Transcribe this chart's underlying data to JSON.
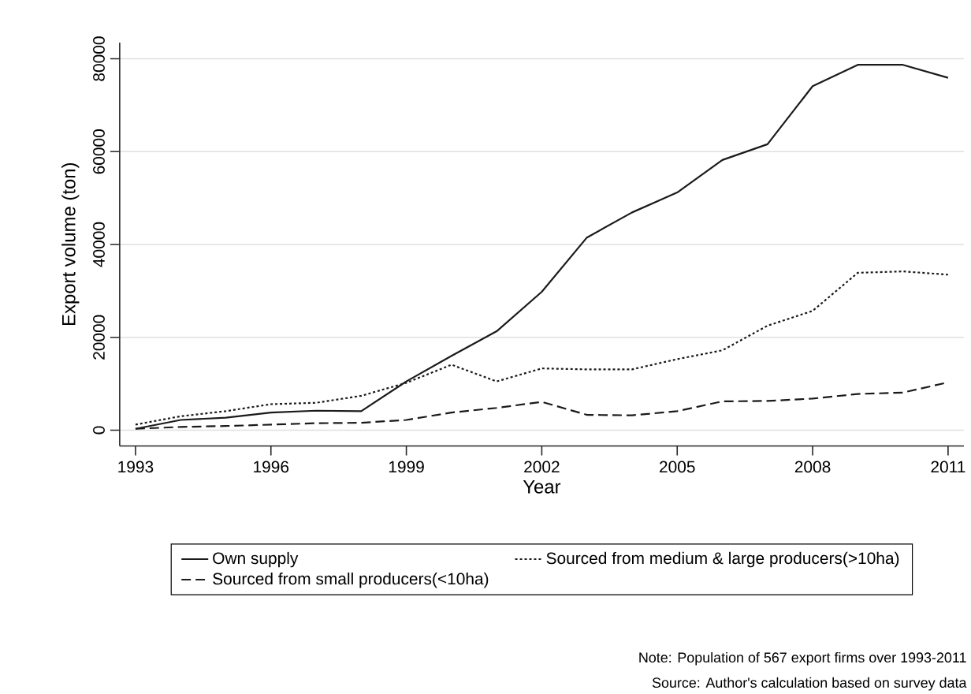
{
  "chart_data": {
    "type": "line",
    "xlabel": "Year",
    "ylabel": "Export volume (ton)",
    "x": [
      1993,
      1994,
      1995,
      1996,
      1997,
      1998,
      1999,
      2000,
      2001,
      2002,
      2003,
      2004,
      2005,
      2006,
      2007,
      2008,
      2009,
      2010,
      2011
    ],
    "series": [
      {
        "name": "Own supply",
        "color": "#1a1a1a",
        "line_style": "solid",
        "values": [
          300,
          2200,
          2700,
          3800,
          4200,
          4100,
          10500,
          16000,
          21300,
          29800,
          41500,
          46900,
          51200,
          58200,
          61600,
          74100,
          78700,
          78700,
          75900
        ]
      },
      {
        "name": "Sourced from medium & large producers(>10ha)",
        "color": "#1a1a1a",
        "line_style": "dotted",
        "values": [
          1200,
          3000,
          4100,
          5600,
          5900,
          7400,
          10200,
          14100,
          10500,
          13300,
          13100,
          13100,
          15300,
          17200,
          22500,
          25700,
          33900,
          34200,
          33500
        ]
      },
      {
        "name": "Sourced from small producers(<10ha)",
        "color": "#1a1a1a",
        "line_style": "dashed",
        "values": [
          300,
          700,
          900,
          1200,
          1500,
          1600,
          2200,
          3800,
          4800,
          6100,
          3300,
          3200,
          4100,
          6200,
          6300,
          6800,
          7800,
          8100,
          10300
        ]
      }
    ],
    "xlim": [
      1992.65,
      2011.35
    ],
    "ylim": [
      -3400,
      83500
    ],
    "xticks": [
      1993,
      1996,
      1999,
      2002,
      2005,
      2008,
      2011
    ],
    "yticks": [
      0,
      20000,
      40000,
      60000,
      80000
    ],
    "grid": "y",
    "legend": "bottom",
    "marker": "none",
    "annotations": [
      "Note: Population of 567 export firms over 1993-2011",
      "Source: Author's calculation based on survey data"
    ]
  }
}
